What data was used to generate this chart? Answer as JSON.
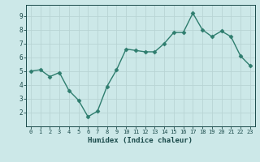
{
  "x": [
    0,
    1,
    2,
    3,
    4,
    5,
    6,
    7,
    8,
    9,
    10,
    11,
    12,
    13,
    14,
    15,
    16,
    17,
    18,
    19,
    20,
    21,
    22,
    23
  ],
  "y": [
    5.0,
    5.1,
    4.6,
    4.9,
    3.6,
    2.9,
    1.7,
    2.1,
    3.9,
    5.1,
    6.6,
    6.5,
    6.4,
    6.4,
    7.0,
    7.8,
    7.8,
    9.2,
    8.0,
    7.5,
    7.9,
    7.5,
    6.1,
    5.4
  ],
  "xlabel": "Humidex (Indice chaleur)",
  "xlim": [
    -0.5,
    23.5
  ],
  "ylim": [
    1.0,
    9.8
  ],
  "yticks": [
    2,
    3,
    4,
    5,
    6,
    7,
    8,
    9
  ],
  "xticks": [
    0,
    1,
    2,
    3,
    4,
    5,
    6,
    7,
    8,
    9,
    10,
    11,
    12,
    13,
    14,
    15,
    16,
    17,
    18,
    19,
    20,
    21,
    22,
    23
  ],
  "line_color": "#2e7d6e",
  "marker": "D",
  "marker_size": 2.5,
  "bg_color": "#cce8e8",
  "grid_color": "#b8d4d4",
  "tick_color": "#1a4a4a",
  "label_color": "#1a4a4a",
  "font_family": "monospace",
  "xlabel_fontsize": 6.5,
  "xtick_fontsize": 5.0,
  "ytick_fontsize": 5.5
}
